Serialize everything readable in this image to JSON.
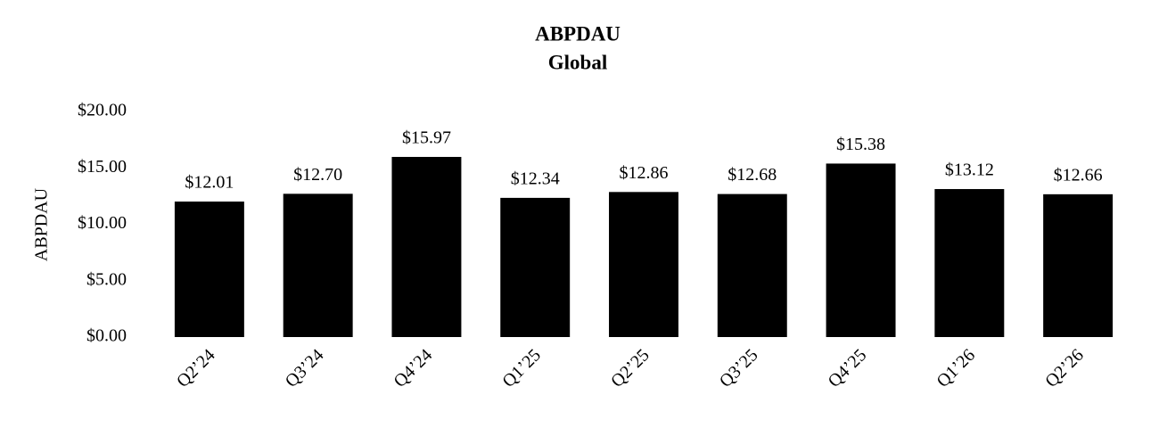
{
  "chart_data": {
    "type": "bar",
    "title": "ABPDAU",
    "subtitle": "Global",
    "y_label": "ABPDAU",
    "categories": [
      "Q2’24",
      "Q3’24",
      "Q4’24",
      "Q1’25",
      "Q2’25",
      "Q3’25",
      "Q4’25",
      "Q1’26",
      "Q2’26"
    ],
    "values": [
      12.01,
      12.7,
      15.97,
      12.34,
      12.86,
      12.68,
      15.38,
      13.12,
      12.66
    ],
    "value_labels": [
      "$12.01",
      "$12.70",
      "$15.97",
      "$12.34",
      "$12.86",
      "$12.68",
      "$15.38",
      "$13.12",
      "$12.66"
    ],
    "color": "#000000",
    "ylim": [
      0,
      20
    ],
    "yticks": [
      {
        "value": 0,
        "label": "$0.00"
      },
      {
        "value": 5,
        "label": "$5.00"
      },
      {
        "value": 10,
        "label": "$10.00"
      },
      {
        "value": 15,
        "label": "$15.00"
      },
      {
        "value": 20,
        "label": "$20.00"
      }
    ],
    "grid": false
  }
}
